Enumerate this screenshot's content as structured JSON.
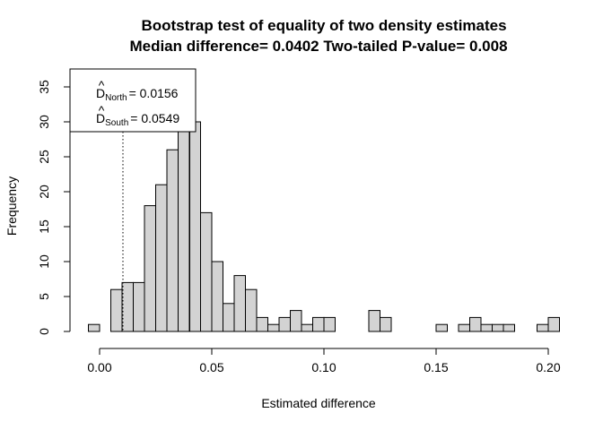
{
  "chart_data": {
    "type": "bar",
    "title": "Bootstrap test of equality of two density estimates",
    "subtitle": "Median difference= 0.0402  Two-tailed P-value= 0.008",
    "xlabel": "Estimated difference",
    "ylabel": "Frequency",
    "xlim": [
      -0.005,
      0.2
    ],
    "ylim": [
      0,
      35
    ],
    "bin_width": 0.005,
    "bin_start": -0.005,
    "frequencies": [
      1,
      0,
      6,
      7,
      7,
      18,
      21,
      26,
      29,
      30,
      17,
      10,
      4,
      8,
      6,
      2,
      1,
      2,
      3,
      1,
      2,
      2,
      0,
      0,
      0,
      3,
      2,
      0,
      0,
      0,
      0,
      1,
      0,
      1,
      2,
      1,
      1,
      1,
      0,
      0,
      1,
      2
    ],
    "x_ticks": [
      0.0,
      0.05,
      0.1,
      0.15,
      0.2
    ],
    "x_tick_labels": [
      "0.00",
      "0.05",
      "0.10",
      "0.15",
      "0.20"
    ],
    "y_ticks": [
      0,
      5,
      10,
      15,
      20,
      25,
      30,
      35
    ],
    "y_tick_labels": [
      "0",
      "5",
      "10",
      "15",
      "20",
      "25",
      "30",
      "35"
    ],
    "vertical_lines": [
      {
        "x": 0.0104,
        "style": "dotted"
      },
      {
        "x": 0.0402,
        "style": "solid"
      }
    ],
    "legend": {
      "placement": "top-left",
      "entries": [
        {
          "prefix": "D",
          "hat": "^",
          "sub": "North",
          "value": "= 0.0156"
        },
        {
          "prefix": "D",
          "hat": "^",
          "sub": "South",
          "value": "= 0.0549"
        }
      ]
    },
    "colors": {
      "bar_fill": "#d3d3d3",
      "bar_stroke": "#000000",
      "line": "#000000"
    },
    "grid": false
  }
}
